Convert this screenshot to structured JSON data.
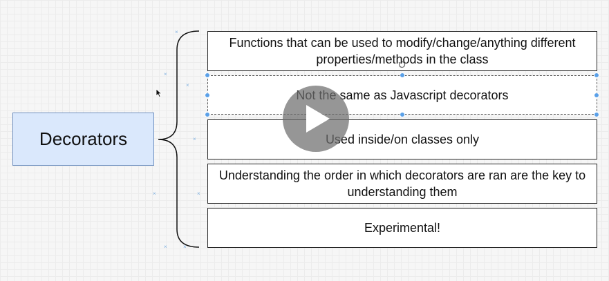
{
  "diagram": {
    "main_node": {
      "label": "Decorators",
      "fill": "#dae8fc",
      "stroke": "#6c8ebf"
    },
    "items": [
      {
        "text": "Functions that can be used to modify/change/anything different properties/methods in the class",
        "selected": false
      },
      {
        "text": "Not the same as Javascript decorators",
        "selected": true
      },
      {
        "text": "Used inside/on classes only",
        "selected": false
      },
      {
        "text": "Understanding the order in which decorators are ran are the key to understanding them",
        "selected": false
      },
      {
        "text": "Experimental!",
        "selected": false
      }
    ]
  },
  "overlay": {
    "icon": "play-icon"
  },
  "colors": {
    "selection_handle": "#5aa0e8",
    "grid": "#ececec",
    "background": "#f6f6f6"
  }
}
